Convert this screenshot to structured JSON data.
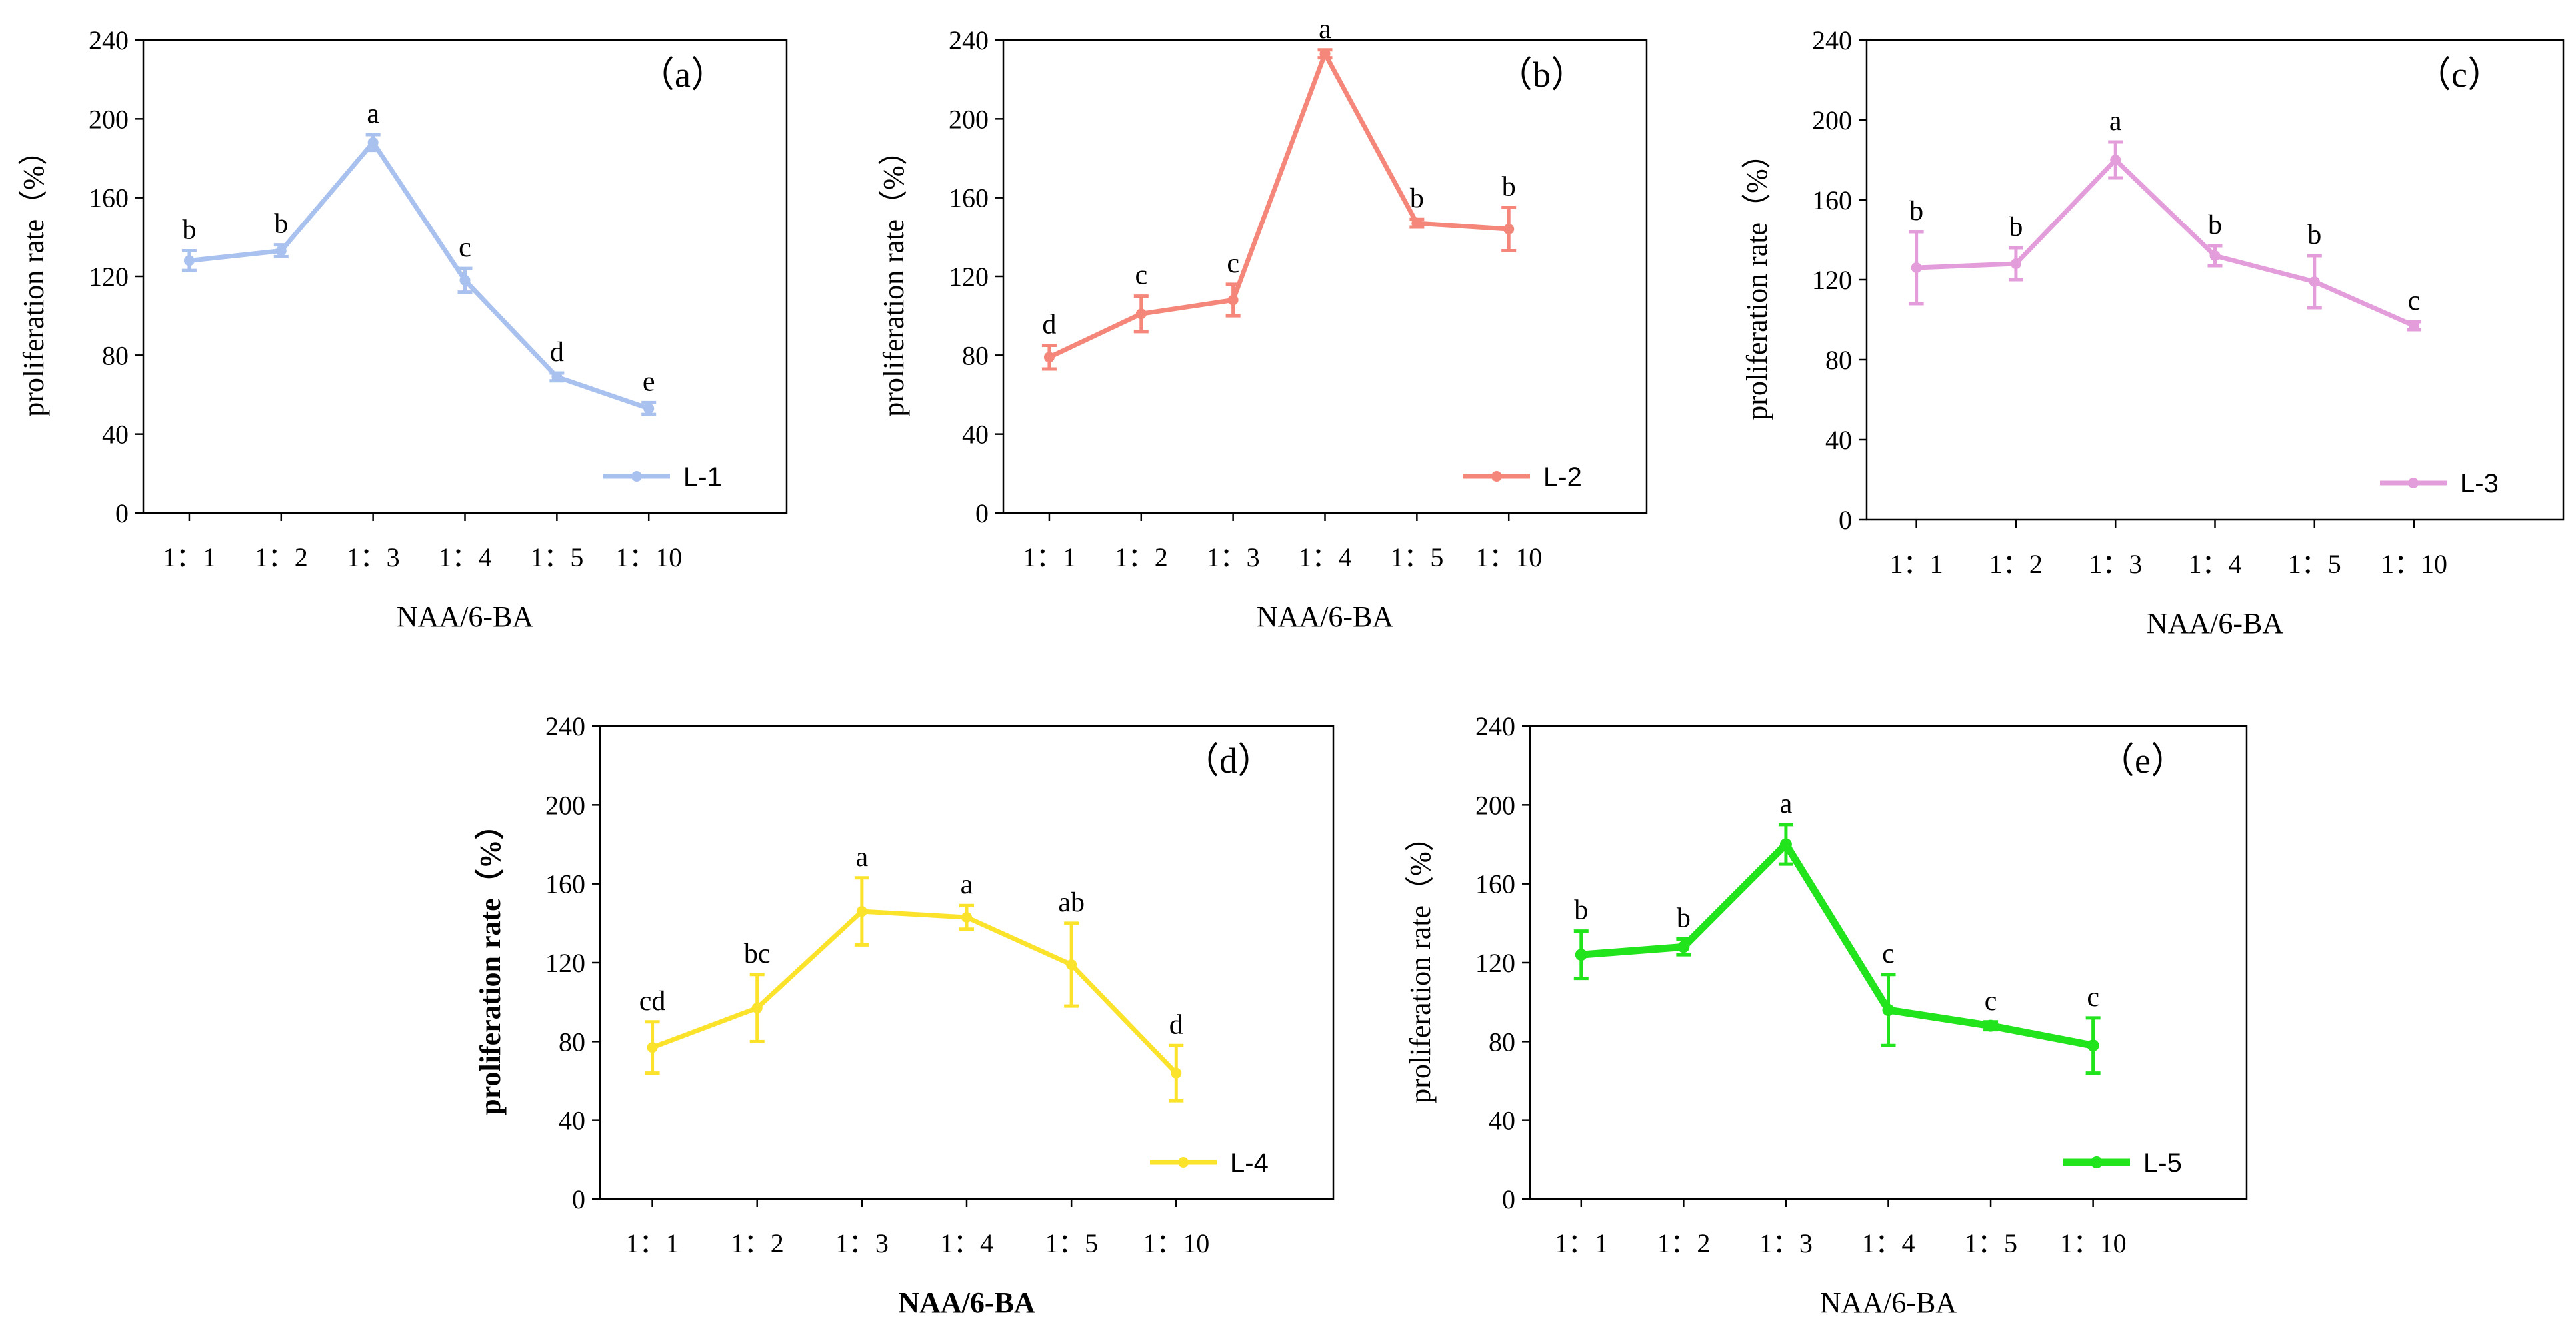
{
  "chart_data": [
    {
      "type": "line",
      "panel_label": "（a）",
      "title": "",
      "categories": [
        "1：1",
        "1：2",
        "1：3",
        "1：4",
        "1：5",
        "1：10"
      ],
      "series": [
        {
          "name": "L-1",
          "values": [
            128,
            133,
            188,
            118,
            69,
            53
          ],
          "errors": [
            5,
            3,
            4,
            6,
            2,
            3
          ],
          "letters": [
            "b",
            "b",
            "a",
            "c",
            "d",
            "e"
          ]
        }
      ],
      "xlabel": "NAA/6-BA",
      "ylabel": "proliferation rate（%）",
      "ylim": [
        0,
        240
      ],
      "yticks": [
        0,
        40,
        80,
        120,
        160,
        200,
        240
      ],
      "color": "#a9c1ee",
      "legend_position": "bottom-right",
      "bold_labels": false
    },
    {
      "type": "line",
      "panel_label": "（b）",
      "title": "",
      "categories": [
        "1：1",
        "1：2",
        "1：3",
        "1：4",
        "1：5",
        "1：10"
      ],
      "series": [
        {
          "name": "L-2",
          "values": [
            79,
            101,
            108,
            233,
            147,
            144
          ],
          "errors": [
            6,
            9,
            8,
            2,
            2,
            11
          ],
          "letters": [
            "d",
            "c",
            "c",
            "a",
            "b",
            "b"
          ]
        }
      ],
      "xlabel": "NAA/6-BA",
      "ylabel": "proliferation rate（%）",
      "ylim": [
        0,
        240
      ],
      "yticks": [
        0,
        40,
        80,
        120,
        160,
        200,
        240
      ],
      "color": "#f5867a",
      "legend_position": "bottom-right",
      "bold_labels": false
    },
    {
      "type": "line",
      "panel_label": "（c）",
      "title": "",
      "categories": [
        "1：1",
        "1：2",
        "1：3",
        "1：4",
        "1：5",
        "1：10"
      ],
      "series": [
        {
          "name": "L-3",
          "values": [
            126,
            128,
            180,
            132,
            119,
            97
          ],
          "errors": [
            18,
            8,
            9,
            5,
            13,
            2
          ],
          "letters": [
            "b",
            "b",
            "a",
            "b",
            "b",
            "c"
          ]
        }
      ],
      "xlabel": "NAA/6-BA",
      "ylabel": "proliferation rate（%）",
      "ylim": [
        0,
        240
      ],
      "yticks": [
        0,
        40,
        80,
        120,
        160,
        200,
        240
      ],
      "color": "#e49ddb",
      "legend_position": "bottom-right",
      "bold_labels": false
    },
    {
      "type": "line",
      "panel_label": "（d）",
      "title": "",
      "categories": [
        "1：1",
        "1：2",
        "1：3",
        "1：4",
        "1：5",
        "1：10"
      ],
      "series": [
        {
          "name": "L-4",
          "values": [
            77,
            97,
            146,
            143,
            119,
            64
          ],
          "errors": [
            13,
            17,
            17,
            6,
            21,
            14
          ],
          "letters": [
            "cd",
            "bc",
            "a",
            "a",
            "ab",
            "d"
          ]
        }
      ],
      "xlabel": "NAA/6-BA",
      "ylabel": "proliferation rate（%）",
      "ylim": [
        0,
        240
      ],
      "yticks": [
        0,
        40,
        80,
        120,
        160,
        200,
        240
      ],
      "color": "#fbe32c",
      "legend_position": "bottom-right",
      "bold_labels": true
    },
    {
      "type": "line",
      "panel_label": "（e）",
      "title": "",
      "categories": [
        "1：1",
        "1：2",
        "1：3",
        "1：4",
        "1：5",
        "1：10"
      ],
      "series": [
        {
          "name": "L-5",
          "values": [
            124,
            128,
            180,
            96,
            88,
            78
          ],
          "errors": [
            12,
            4,
            10,
            18,
            2,
            14
          ],
          "letters": [
            "b",
            "b",
            "a",
            "c",
            "c",
            "c"
          ]
        }
      ],
      "xlabel": "NAA/6-BA",
      "ylabel": "proliferation rate（%）",
      "ylim": [
        0,
        240
      ],
      "yticks": [
        0,
        40,
        80,
        120,
        160,
        200,
        240
      ],
      "color": "#22e41c",
      "legend_position": "bottom-right",
      "bold_labels": false
    }
  ]
}
